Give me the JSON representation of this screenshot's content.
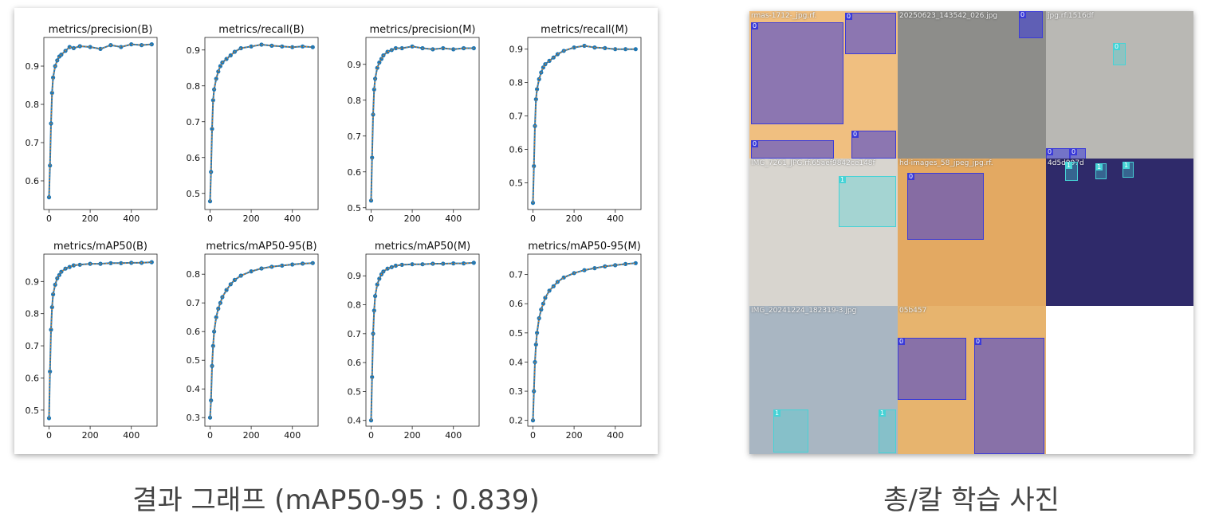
{
  "captions": {
    "left": "결과 그래프 (mAP50-95 : 0.839)",
    "right": "총/칼 학습 사진"
  },
  "colors": {
    "line": "#1f77b4",
    "smooth": "#ff7f0e",
    "box_gun": "#3b3bd8",
    "box_knife": "#46d3d6",
    "image_bg_orange": "#eebd7b"
  },
  "chart_data": [
    {
      "type": "line",
      "title": "metrics/precision(B)",
      "x": [
        0,
        5,
        10,
        15,
        20,
        30,
        40,
        50,
        60,
        80,
        100,
        120,
        150,
        200,
        250,
        300,
        350,
        400,
        450,
        499
      ],
      "values": [
        0.557,
        0.64,
        0.75,
        0.83,
        0.87,
        0.9,
        0.915,
        0.925,
        0.93,
        0.94,
        0.95,
        0.947,
        0.952,
        0.95,
        0.945,
        0.955,
        0.95,
        0.957,
        0.955,
        0.957
      ],
      "xlim": [
        -25,
        525
      ],
      "ylim": [
        0.525,
        0.975
      ],
      "xticks": [
        0,
        200,
        400
      ],
      "yticks": [
        0.6,
        0.7,
        0.8,
        0.9
      ]
    },
    {
      "type": "line",
      "title": "metrics/recall(B)",
      "x": [
        0,
        5,
        10,
        15,
        20,
        30,
        40,
        50,
        60,
        80,
        100,
        120,
        150,
        200,
        250,
        300,
        350,
        400,
        450,
        499
      ],
      "values": [
        0.478,
        0.56,
        0.68,
        0.76,
        0.79,
        0.82,
        0.84,
        0.855,
        0.865,
        0.875,
        0.885,
        0.895,
        0.905,
        0.91,
        0.915,
        0.912,
        0.91,
        0.908,
        0.91,
        0.908
      ],
      "xlim": [
        -25,
        525
      ],
      "ylim": [
        0.455,
        0.935
      ],
      "xticks": [
        0,
        200,
        400
      ],
      "yticks": [
        0.5,
        0.6,
        0.7,
        0.8,
        0.9
      ]
    },
    {
      "type": "line",
      "title": "metrics/precision(M)",
      "x": [
        0,
        5,
        10,
        15,
        20,
        30,
        40,
        50,
        60,
        80,
        100,
        120,
        150,
        200,
        250,
        300,
        350,
        400,
        450,
        499
      ],
      "values": [
        0.52,
        0.64,
        0.76,
        0.83,
        0.86,
        0.89,
        0.905,
        0.915,
        0.925,
        0.935,
        0.94,
        0.945,
        0.945,
        0.95,
        0.945,
        0.942,
        0.945,
        0.942,
        0.945,
        0.945
      ],
      "xlim": [
        -25,
        525
      ],
      "ylim": [
        0.495,
        0.975
      ],
      "xticks": [
        0,
        200,
        400
      ],
      "yticks": [
        0.5,
        0.6,
        0.7,
        0.8,
        0.9
      ]
    },
    {
      "type": "line",
      "title": "metrics/recall(M)",
      "x": [
        0,
        5,
        10,
        15,
        20,
        30,
        40,
        50,
        60,
        80,
        100,
        120,
        150,
        200,
        250,
        300,
        350,
        400,
        450,
        499
      ],
      "values": [
        0.44,
        0.55,
        0.67,
        0.75,
        0.78,
        0.81,
        0.83,
        0.845,
        0.855,
        0.865,
        0.875,
        0.885,
        0.895,
        0.905,
        0.91,
        0.905,
        0.903,
        0.9,
        0.9,
        0.9
      ],
      "xlim": [
        -25,
        525
      ],
      "ylim": [
        0.42,
        0.935
      ],
      "xticks": [
        0,
        200,
        400
      ],
      "yticks": [
        0.5,
        0.6,
        0.7,
        0.8,
        0.9
      ]
    },
    {
      "type": "line",
      "title": "metrics/mAP50(B)",
      "x": [
        0,
        5,
        10,
        15,
        20,
        30,
        40,
        50,
        60,
        80,
        100,
        120,
        150,
        200,
        250,
        300,
        350,
        400,
        450,
        499
      ],
      "values": [
        0.475,
        0.62,
        0.75,
        0.82,
        0.86,
        0.89,
        0.91,
        0.92,
        0.93,
        0.94,
        0.945,
        0.95,
        0.952,
        0.955,
        0.955,
        0.957,
        0.957,
        0.958,
        0.958,
        0.96
      ],
      "xlim": [
        -25,
        525
      ],
      "ylim": [
        0.45,
        0.985
      ],
      "xticks": [
        0,
        200,
        400
      ],
      "yticks": [
        0.5,
        0.6,
        0.7,
        0.8,
        0.9
      ]
    },
    {
      "type": "line",
      "title": "metrics/mAP50-95(B)",
      "x": [
        0,
        5,
        10,
        15,
        20,
        30,
        40,
        50,
        60,
        80,
        100,
        120,
        150,
        200,
        250,
        300,
        350,
        400,
        450,
        499
      ],
      "values": [
        0.3,
        0.36,
        0.48,
        0.55,
        0.6,
        0.65,
        0.68,
        0.7,
        0.72,
        0.745,
        0.765,
        0.78,
        0.795,
        0.81,
        0.82,
        0.826,
        0.83,
        0.834,
        0.837,
        0.839
      ],
      "xlim": [
        -25,
        525
      ],
      "ylim": [
        0.27,
        0.87
      ],
      "xticks": [
        0,
        200,
        400
      ],
      "yticks": [
        0.3,
        0.4,
        0.5,
        0.6,
        0.7,
        0.8
      ]
    },
    {
      "type": "line",
      "title": "metrics/mAP50(M)",
      "x": [
        0,
        5,
        10,
        15,
        20,
        30,
        40,
        50,
        60,
        80,
        100,
        120,
        150,
        200,
        250,
        300,
        350,
        400,
        450,
        499
      ],
      "values": [
        0.4,
        0.55,
        0.7,
        0.78,
        0.83,
        0.87,
        0.89,
        0.905,
        0.915,
        0.925,
        0.93,
        0.935,
        0.938,
        0.94,
        0.94,
        0.942,
        0.942,
        0.943,
        0.943,
        0.945
      ],
      "xlim": [
        -25,
        525
      ],
      "ylim": [
        0.38,
        0.975
      ],
      "xticks": [
        0,
        200,
        400
      ],
      "yticks": [
        0.4,
        0.5,
        0.6,
        0.7,
        0.8,
        0.9
      ]
    },
    {
      "type": "line",
      "title": "metrics/mAP50-95(M)",
      "x": [
        0,
        5,
        10,
        15,
        20,
        30,
        40,
        50,
        60,
        80,
        100,
        120,
        150,
        200,
        250,
        300,
        350,
        400,
        450,
        499
      ],
      "values": [
        0.2,
        0.3,
        0.4,
        0.46,
        0.5,
        0.55,
        0.58,
        0.6,
        0.62,
        0.645,
        0.66,
        0.675,
        0.69,
        0.705,
        0.715,
        0.722,
        0.728,
        0.732,
        0.736,
        0.739
      ],
      "xlim": [
        -25,
        525
      ],
      "ylim": [
        0.18,
        0.77
      ],
      "xticks": [
        0,
        200,
        400
      ],
      "yticks": [
        0.2,
        0.3,
        0.4,
        0.5,
        0.6,
        0.7
      ]
    }
  ],
  "tiles": [
    {
      "caption": "rmas-1712-_jpg.rf.",
      "bg": "#f0bf80",
      "boxes": [
        {
          "label": "0",
          "cls": "gun"
        },
        {
          "label": "0",
          "cls": "gun"
        },
        {
          "label": "0",
          "cls": "gun"
        },
        {
          "label": "0",
          "cls": "gun"
        }
      ]
    },
    {
      "caption": "20250623_143542_026.jpg",
      "bg": "#8d8d8a",
      "boxes": [
        {
          "label": "0",
          "cls": "gun"
        }
      ]
    },
    {
      "caption": "jpg.rf.1516df",
      "bg": "#b9b8b4",
      "boxes": [
        {
          "label": "0",
          "cls": "knife"
        },
        {
          "label": "0",
          "cls": "gun"
        },
        {
          "label": "0",
          "cls": "gun"
        }
      ]
    },
    {
      "caption": "IMG_7261_JPG.rf.65aef9842ce148f",
      "bg": "#d8d5cf",
      "boxes": [
        {
          "label": "1",
          "cls": "knife"
        }
      ]
    },
    {
      "caption": "hd-images_58_jpeg_jpg.rf.",
      "bg": "#e3a962",
      "boxes": [
        {
          "label": "0",
          "cls": "gun"
        }
      ]
    },
    {
      "caption": "4d5d997d",
      "bg": "#2f2a6a",
      "boxes": [
        {
          "label": "1",
          "cls": "knife"
        },
        {
          "label": "1",
          "cls": "knife"
        },
        {
          "label": "1",
          "cls": "knife"
        }
      ]
    },
    {
      "caption": "IMG_20241224_182319-3.jpg",
      "bg": "#a9b6c2",
      "boxes": [
        {
          "label": "1",
          "cls": "knife"
        },
        {
          "label": "1",
          "cls": "knife"
        }
      ]
    },
    {
      "caption": "05b457",
      "bg": "#e7b46e",
      "boxes": [
        {
          "label": "0",
          "cls": "gun"
        },
        {
          "label": "0",
          "cls": "gun"
        }
      ]
    },
    {
      "caption": "",
      "bg": "#ffffff",
      "boxes": []
    }
  ]
}
